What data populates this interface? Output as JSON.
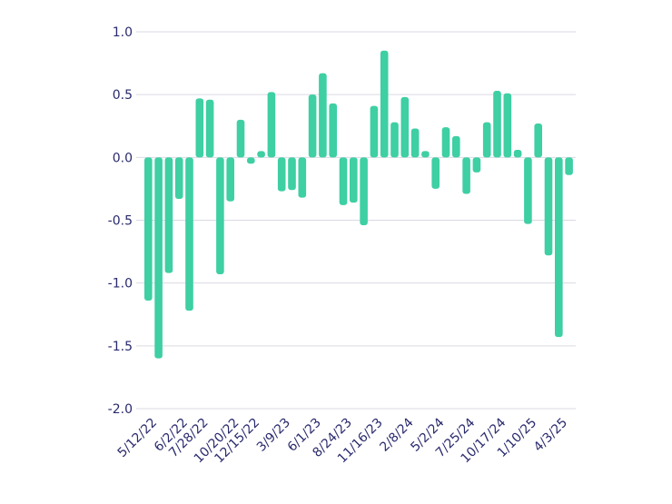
{
  "chart_data": {
    "type": "bar",
    "title": "",
    "xlabel": "",
    "ylabel": "",
    "ylim": [
      -2.0,
      1.0
    ],
    "yticks": [
      1.0,
      0.5,
      0.0,
      -0.5,
      -1.0,
      -1.5,
      -2.0
    ],
    "ytick_labels": [
      "1.0",
      "0.5",
      "0.0",
      "-0.5",
      "-1.0",
      "-1.5",
      "-2.0"
    ],
    "grid": true,
    "colors": {
      "bar": "#3ecfa3",
      "grid": "#d9d9e3",
      "text": "#2a2a6e"
    },
    "x_tick_labels": [
      {
        "index": 0,
        "label": "5/12/22"
      },
      {
        "index": 3,
        "label": "6/2/22"
      },
      {
        "index": 5,
        "label": "7/28/22"
      },
      {
        "index": 8,
        "label": "10/20/22"
      },
      {
        "index": 10,
        "label": "12/15/22"
      },
      {
        "index": 13,
        "label": "3/9/23"
      },
      {
        "index": 16,
        "label": "6/1/23"
      },
      {
        "index": 19,
        "label": "8/24/23"
      },
      {
        "index": 22,
        "label": "11/16/23"
      },
      {
        "index": 25,
        "label": "2/8/24"
      },
      {
        "index": 28,
        "label": "5/2/24"
      },
      {
        "index": 31,
        "label": "7/25/24"
      },
      {
        "index": 34,
        "label": "10/17/24"
      },
      {
        "index": 37,
        "label": "1/10/25"
      },
      {
        "index": 40,
        "label": "4/3/25"
      }
    ],
    "values": [
      -1.14,
      -1.6,
      -0.92,
      -0.33,
      -1.22,
      0.47,
      0.46,
      -0.93,
      -0.35,
      0.3,
      -0.05,
      0.05,
      0.52,
      -0.27,
      -0.26,
      -0.32,
      0.5,
      0.67,
      0.43,
      -0.38,
      -0.36,
      -0.54,
      0.41,
      0.85,
      0.28,
      0.48,
      0.23,
      0.05,
      -0.25,
      0.24,
      0.17,
      -0.29,
      -0.12,
      0.28,
      0.53,
      0.51,
      0.06,
      -0.53,
      0.27,
      -0.78,
      -1.43,
      -0.14
    ]
  }
}
